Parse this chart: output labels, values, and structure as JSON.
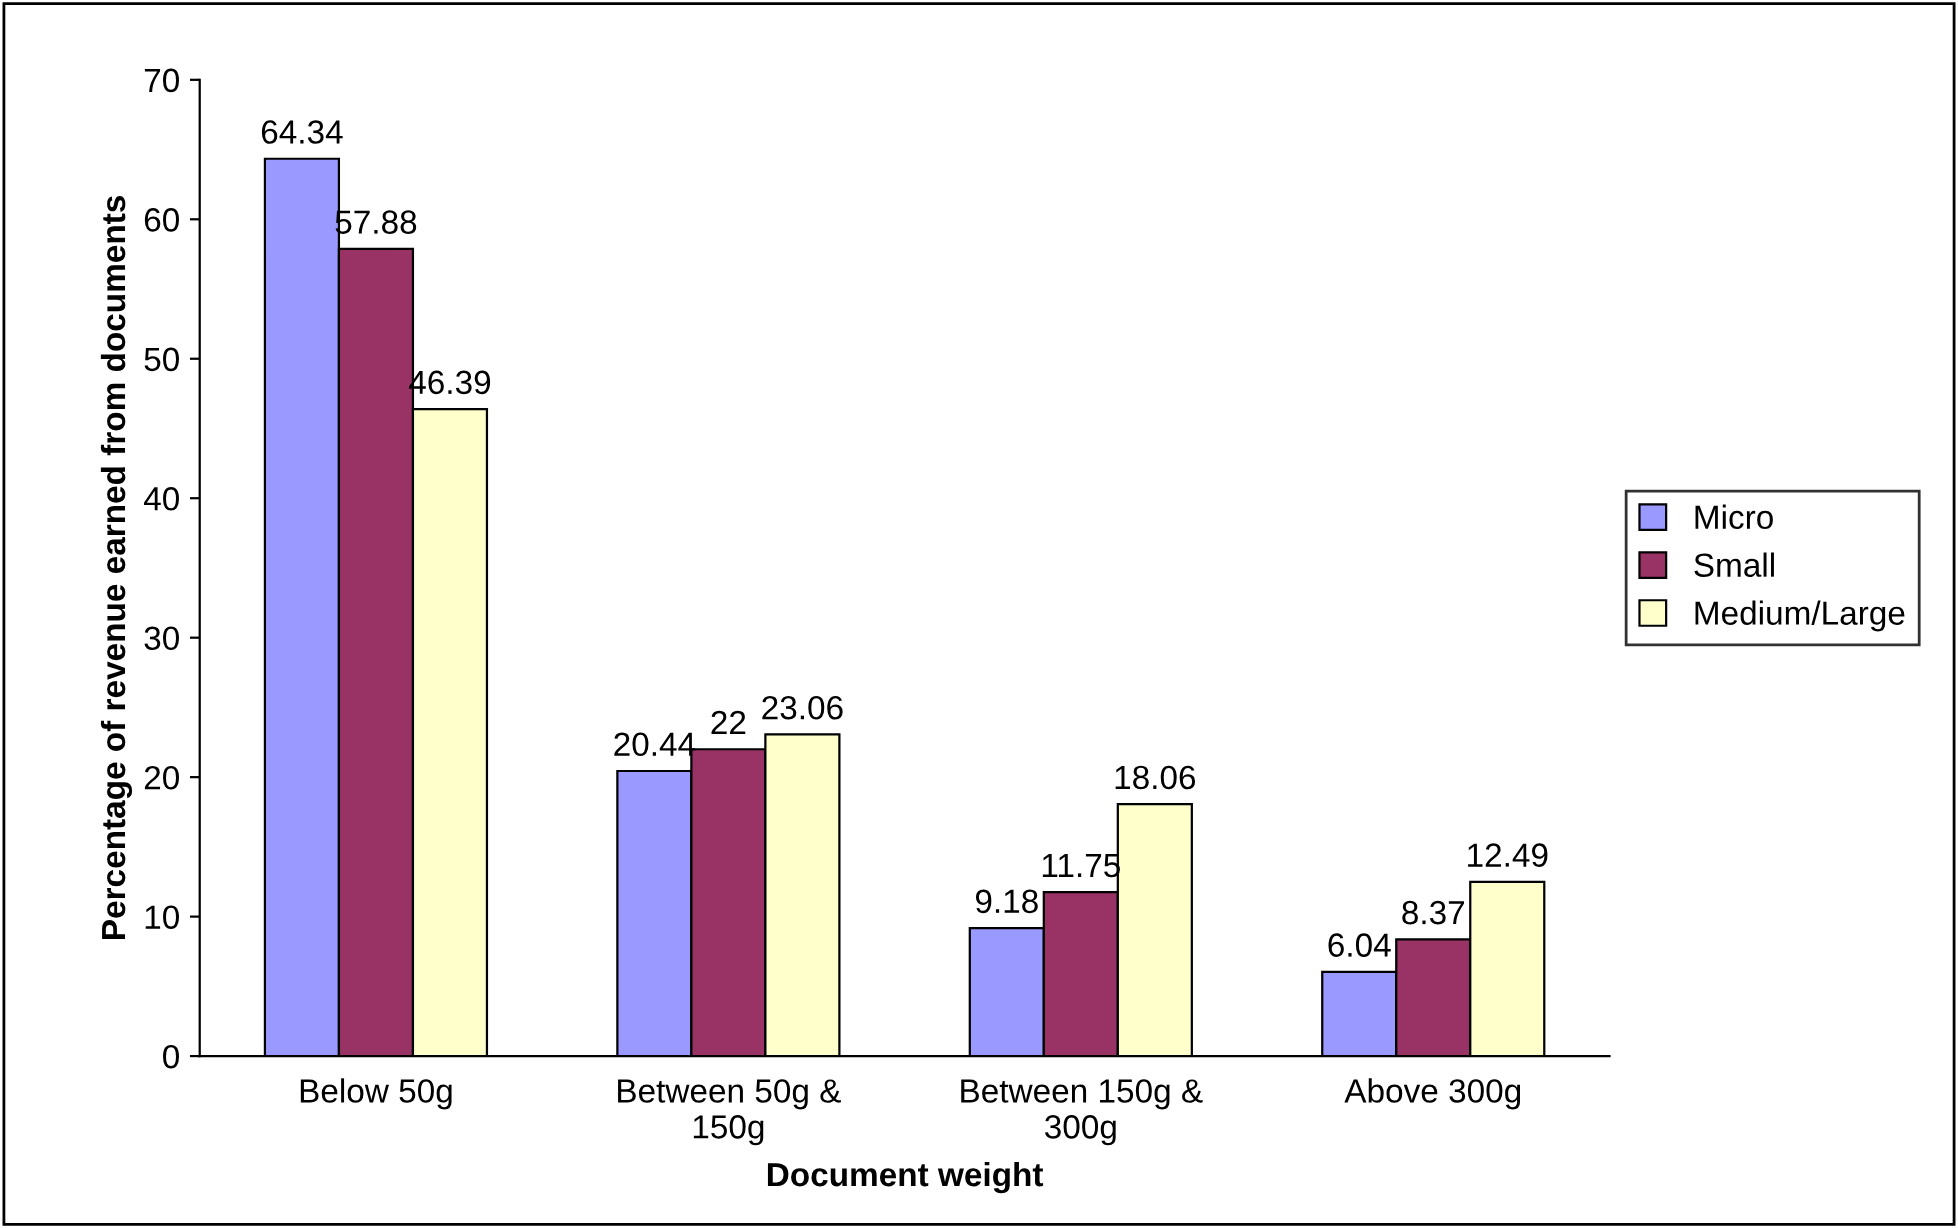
{
  "chart_data": {
    "type": "bar",
    "xlabel": "Document weight",
    "ylabel": "Percentage of revenue earned from documents",
    "categories": [
      "Below 50g",
      "Between 50g &\n150g",
      "Between 150g &\n300g",
      "Above 300g"
    ],
    "series": [
      {
        "name": "Micro",
        "color": "#9999ff",
        "values": [
          64.34,
          20.44,
          9.18,
          6.04
        ]
      },
      {
        "name": "Small",
        "color": "#993366",
        "values": [
          57.88,
          22,
          11.75,
          8.37
        ]
      },
      {
        "name": "Medium/Large",
        "color": "#ffffcc",
        "values": [
          46.39,
          23.06,
          18.06,
          12.49
        ]
      }
    ],
    "ylim": [
      0,
      70
    ],
    "yticks": [
      0,
      10,
      20,
      30,
      40,
      50,
      60,
      70
    ],
    "data_labels": true,
    "legend": "right",
    "grid": false
  }
}
